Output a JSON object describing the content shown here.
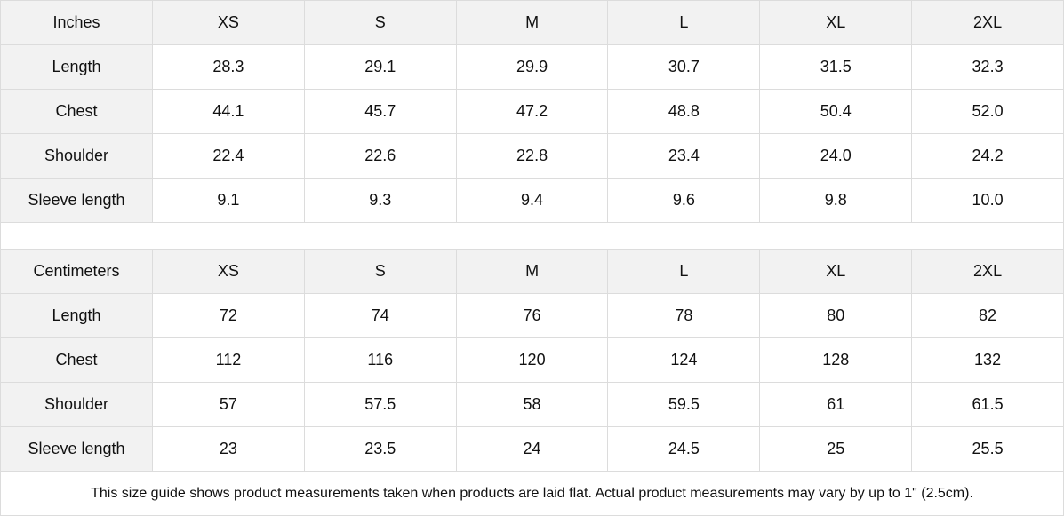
{
  "tables": [
    {
      "unit": "Inches",
      "sizes": [
        "XS",
        "S",
        "M",
        "L",
        "XL",
        "2XL"
      ],
      "rows": [
        {
          "label": "Length",
          "values": [
            "28.3",
            "29.1",
            "29.9",
            "30.7",
            "31.5",
            "32.3"
          ]
        },
        {
          "label": "Chest",
          "values": [
            "44.1",
            "45.7",
            "47.2",
            "48.8",
            "50.4",
            "52.0"
          ]
        },
        {
          "label": "Shoulder",
          "values": [
            "22.4",
            "22.6",
            "22.8",
            "23.4",
            "24.0",
            "24.2"
          ]
        },
        {
          "label": "Sleeve length",
          "values": [
            "9.1",
            "9.3",
            "9.4",
            "9.6",
            "9.8",
            "10.0"
          ]
        }
      ]
    },
    {
      "unit": "Centimeters",
      "sizes": [
        "XS",
        "S",
        "M",
        "L",
        "XL",
        "2XL"
      ],
      "rows": [
        {
          "label": "Length",
          "values": [
            "72",
            "74",
            "76",
            "78",
            "80",
            "82"
          ]
        },
        {
          "label": "Chest",
          "values": [
            "112",
            "116",
            "120",
            "124",
            "128",
            "132"
          ]
        },
        {
          "label": "Shoulder",
          "values": [
            "57",
            "57.5",
            "58",
            "59.5",
            "61",
            "61.5"
          ]
        },
        {
          "label": "Sleeve length",
          "values": [
            "23",
            "23.5",
            "24",
            "24.5",
            "25",
            "25.5"
          ]
        }
      ]
    }
  ],
  "note": "This size guide shows product measurements taken when products are laid flat.  Actual product measurements may vary by up to 1\" (2.5cm).",
  "colors": {
    "header_bg": "#f2f2f2",
    "border": "#dcdcdc"
  }
}
